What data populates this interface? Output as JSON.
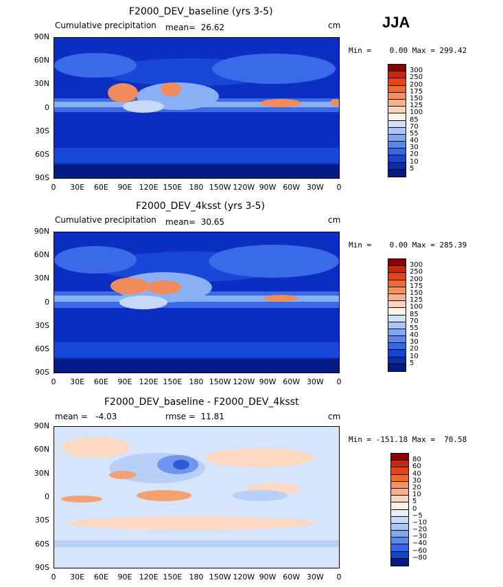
{
  "season": "JJA",
  "units": "cm",
  "x_ticks": [
    "0",
    "30E",
    "60E",
    "90E",
    "120E",
    "150E",
    "180",
    "150W",
    "120W",
    "90W",
    "60W",
    "30W",
    "0"
  ],
  "y_ticks": [
    "90N",
    "60N",
    "30N",
    "0",
    "30S",
    "60S",
    "90S"
  ],
  "panels": [
    {
      "title": "F2000_DEV_baseline (yrs 3-5)",
      "subtitle": "Cumulative precipitation",
      "stat": "mean=  26.62",
      "minmax": "Min =    0.00 Max = 299.42",
      "cbar_labels": [
        "300",
        "250",
        "200",
        "175",
        "150",
        "125",
        "100",
        "85",
        "70",
        "55",
        "40",
        "30",
        "20",
        "10",
        "5"
      ],
      "cbar_colors": [
        "#8b0000",
        "#c8280e",
        "#e74416",
        "#f06a2e",
        "#f7905a",
        "#f9b08c",
        "#fbd4bc",
        "#fdf0e4",
        "#cfe1fb",
        "#a9c6fa",
        "#7ea8f4",
        "#5888ee",
        "#3568e6",
        "#1444d6",
        "#0b2ea8",
        "#041a84"
      ],
      "field_colors": [
        "#0a2fc2",
        "#1848d8",
        "#3a6ae8",
        "#8ab0f6",
        "#f08c5c",
        "#c8d9f8"
      ]
    },
    {
      "title": "F2000_DEV_4ksst (yrs 3-5)",
      "subtitle": "Cumulative precipitation",
      "stat": "mean=  30.65",
      "minmax": "Min =    0.00 Max = 285.39",
      "cbar_labels": [
        "300",
        "250",
        "200",
        "175",
        "150",
        "125",
        "100",
        "85",
        "70",
        "55",
        "40",
        "30",
        "20",
        "10",
        "5"
      ],
      "cbar_colors": [
        "#8b0000",
        "#c8280e",
        "#e74416",
        "#f06a2e",
        "#f7905a",
        "#f9b08c",
        "#fbd4bc",
        "#fdf0e4",
        "#cfe1fb",
        "#a9c6fa",
        "#7ea8f4",
        "#5888ee",
        "#3568e6",
        "#1444d6",
        "#0b2ea8",
        "#041a84"
      ],
      "field_colors": [
        "#0a2fc2",
        "#1848d8",
        "#3a6ae8",
        "#8ab0f6",
        "#f08c5c",
        "#c8d9f8"
      ]
    },
    {
      "title": "F2000_DEV_baseline - F2000_DEV_4ksst",
      "subtitle": "mean =   -4.03",
      "stat": "rmse =  11.81",
      "minmax": "Min = -151.18 Max =  70.58",
      "cbar_labels": [
        "80",
        "60",
        "40",
        "30",
        "20",
        "10",
        "5",
        "0",
        "−5",
        "−10",
        "−20",
        "−30",
        "−40",
        "−60",
        "−80"
      ],
      "cbar_colors": [
        "#8b0000",
        "#c8280e",
        "#e74416",
        "#f06a2e",
        "#f7905a",
        "#f9b08c",
        "#fbd4bc",
        "#fdf0e4",
        "#e6effc",
        "#c9dbfb",
        "#a9c6fa",
        "#7ea8f4",
        "#5888ee",
        "#3568e6",
        "#1444d6",
        "#041a84"
      ],
      "field_colors": [
        "#d6e5fb",
        "#fbd9c2",
        "#f4a070",
        "#b8cff8",
        "#6e96ef",
        "#2e5ad8"
      ]
    }
  ]
}
